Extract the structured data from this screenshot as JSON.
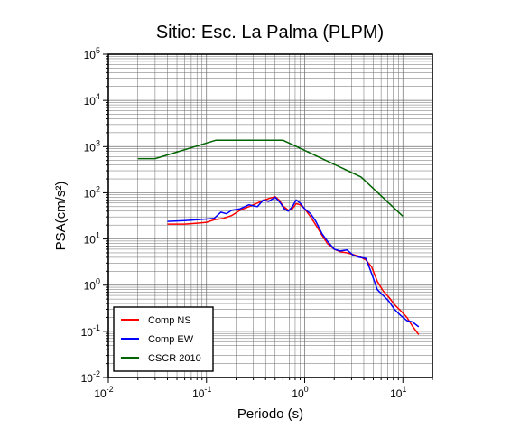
{
  "chart_data": {
    "type": "line",
    "title": "Sitio: Esc. La Palma (PLPM)",
    "xlabel": "Periodo (s)",
    "ylabel": "PSA(cm/s²)",
    "x_scale": "log",
    "y_scale": "log",
    "xlim": [
      0.01,
      20
    ],
    "ylim": [
      0.01,
      100000
    ],
    "grid": true,
    "legend_position": "bottom-left",
    "x_ticks": [
      {
        "base": "10",
        "exp": "-2"
      },
      {
        "base": "10",
        "exp": "-1"
      },
      {
        "base": "10",
        "exp": "0"
      },
      {
        "base": "10",
        "exp": "1"
      }
    ],
    "y_ticks": [
      {
        "base": "10",
        "exp": "-2"
      },
      {
        "base": "10",
        "exp": "-1"
      },
      {
        "base": "10",
        "exp": "0"
      },
      {
        "base": "10",
        "exp": "1"
      },
      {
        "base": "10",
        "exp": "2"
      },
      {
        "base": "10",
        "exp": "3"
      },
      {
        "base": "10",
        "exp": "4"
      },
      {
        "base": "10",
        "exp": "5"
      }
    ],
    "series": [
      {
        "name": "Comp NS",
        "color": "#ff0000",
        "x": [
          0.04,
          0.06,
          0.08,
          0.1,
          0.12,
          0.15,
          0.18,
          0.22,
          0.27,
          0.33,
          0.38,
          0.43,
          0.5,
          0.55,
          0.6,
          0.68,
          0.75,
          0.82,
          0.9,
          1.0,
          1.15,
          1.3,
          1.5,
          1.7,
          2.0,
          2.3,
          2.7,
          3.1,
          3.6,
          4.2,
          4.8,
          5.5,
          6.3,
          7.2,
          8.2,
          9.5,
          11,
          12.5,
          14.5
        ],
        "y": [
          21,
          21,
          22,
          23,
          26,
          28,
          32,
          42,
          50,
          60,
          68,
          75,
          82,
          70,
          52,
          42,
          45,
          58,
          55,
          45,
          30,
          20,
          12,
          8,
          6,
          5.3,
          5,
          4.6,
          4.2,
          3.5,
          2.5,
          1.2,
          0.75,
          0.55,
          0.38,
          0.28,
          0.2,
          0.13,
          0.085
        ]
      },
      {
        "name": "Comp EW",
        "color": "#0000ff",
        "x": [
          0.04,
          0.06,
          0.08,
          0.1,
          0.12,
          0.14,
          0.16,
          0.18,
          0.22,
          0.27,
          0.33,
          0.38,
          0.43,
          0.5,
          0.56,
          0.62,
          0.68,
          0.75,
          0.82,
          0.9,
          1.0,
          1.15,
          1.3,
          1.5,
          1.7,
          2.0,
          2.3,
          2.7,
          3.1,
          3.6,
          4.2,
          4.8,
          5.5,
          6.3,
          7.2,
          8.2,
          9.5,
          11,
          12.5,
          14.5
        ],
        "y": [
          24,
          25,
          26,
          27,
          28,
          38,
          35,
          42,
          45,
          55,
          50,
          70,
          65,
          80,
          62,
          45,
          40,
          50,
          70,
          60,
          45,
          35,
          24,
          13,
          9,
          6,
          5.5,
          5.8,
          4.5,
          4,
          3.8,
          1.8,
          0.8,
          0.6,
          0.45,
          0.3,
          0.22,
          0.17,
          0.16,
          0.125
        ]
      },
      {
        "name": "CSCR 2010",
        "color": "#006400",
        "x": [
          0.02,
          0.03,
          0.125,
          0.6,
          3.75,
          10
        ],
        "y": [
          550,
          550,
          1375,
          1375,
          220,
          31
        ]
      }
    ]
  }
}
